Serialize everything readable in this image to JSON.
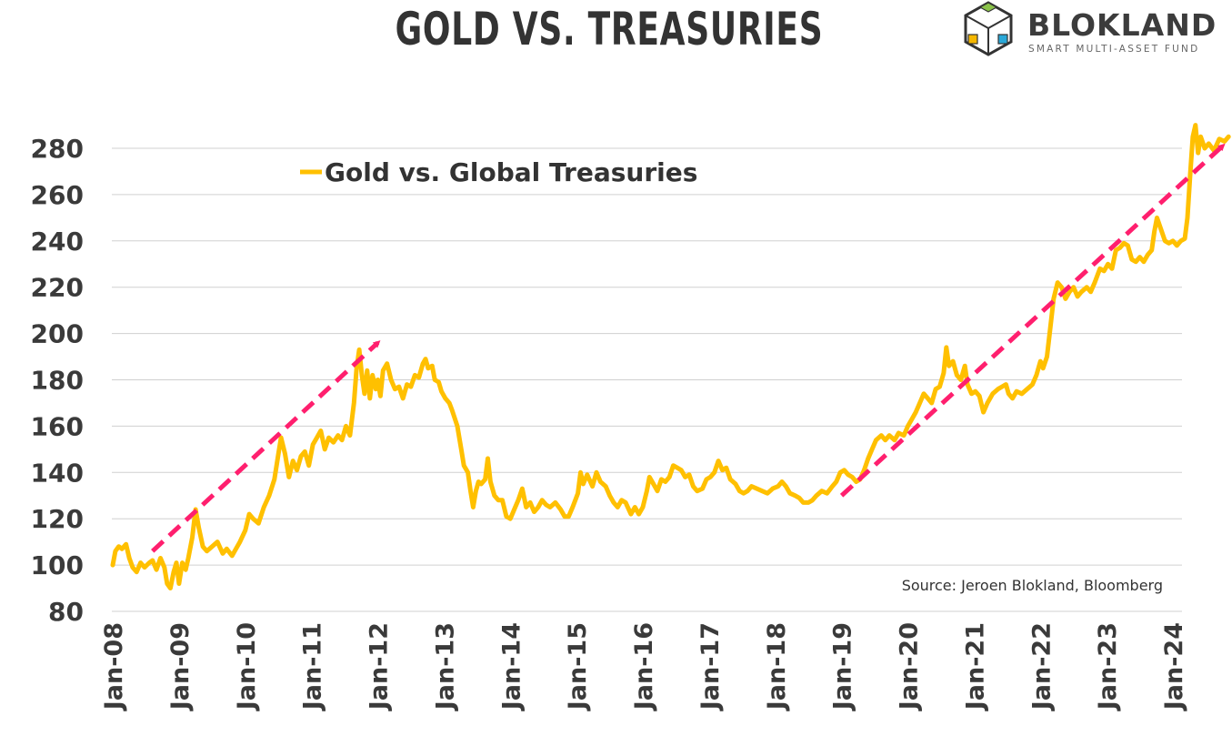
{
  "title": "GOLD VS. TREASURIES",
  "brand": {
    "name": "BLOKLAND",
    "tagline": "SMART MULTI-ASSET FUND",
    "icon": "cube-logo-icon"
  },
  "colors": {
    "series": "#FFC000",
    "arrow": "#FF1F6E",
    "grid": "#D0D0D0",
    "text": "#333333"
  },
  "chart_data": {
    "type": "line",
    "title": "GOLD VS. TREASURIES",
    "legend": "Gold vs. Global Treasuries",
    "legend_position": "top-left",
    "source": "Source: Jeroen Blokland, Bloomberg",
    "ylim": [
      80,
      290
    ],
    "yticks": [
      80,
      100,
      120,
      140,
      160,
      180,
      200,
      220,
      240,
      260,
      280
    ],
    "xlim": [
      2008.0,
      2024.85
    ],
    "xticks": [
      {
        "label": "Jan-08",
        "value": 2008
      },
      {
        "label": "Jan-09",
        "value": 2009
      },
      {
        "label": "Jan-10",
        "value": 2010
      },
      {
        "label": "Jan-11",
        "value": 2011
      },
      {
        "label": "Jan-12",
        "value": 2012
      },
      {
        "label": "Jan-13",
        "value": 2013
      },
      {
        "label": "Jan-14",
        "value": 2014
      },
      {
        "label": "Jan-15",
        "value": 2015
      },
      {
        "label": "Jan-16",
        "value": 2016
      },
      {
        "label": "Jan-17",
        "value": 2017
      },
      {
        "label": "Jan-18",
        "value": 2018
      },
      {
        "label": "Jan-19",
        "value": 2019
      },
      {
        "label": "Jan-20",
        "value": 2020
      },
      {
        "label": "Jan-21",
        "value": 2021
      },
      {
        "label": "Jan-22",
        "value": 2022
      },
      {
        "label": "Jan-23",
        "value": 2023
      },
      {
        "label": "Jan-24",
        "value": 2024
      }
    ],
    "series": [
      {
        "name": "Gold vs. Global Treasuries",
        "points": [
          [
            2008.0,
            100
          ],
          [
            2008.04,
            106
          ],
          [
            2008.09,
            108
          ],
          [
            2008.14,
            107
          ],
          [
            2008.2,
            109
          ],
          [
            2008.25,
            103
          ],
          [
            2008.3,
            99
          ],
          [
            2008.36,
            97
          ],
          [
            2008.42,
            101
          ],
          [
            2008.48,
            99
          ],
          [
            2008.55,
            101
          ],
          [
            2008.6,
            102
          ],
          [
            2008.66,
            98
          ],
          [
            2008.72,
            103
          ],
          [
            2008.78,
            99
          ],
          [
            2008.82,
            92
          ],
          [
            2008.87,
            90
          ],
          [
            2008.92,
            97
          ],
          [
            2008.96,
            101
          ],
          [
            2009.0,
            92
          ],
          [
            2009.05,
            101
          ],
          [
            2009.1,
            98
          ],
          [
            2009.14,
            103
          ],
          [
            2009.2,
            112
          ],
          [
            2009.25,
            124
          ],
          [
            2009.3,
            116
          ],
          [
            2009.36,
            108
          ],
          [
            2009.42,
            106
          ],
          [
            2009.5,
            108
          ],
          [
            2009.58,
            110
          ],
          [
            2009.66,
            105
          ],
          [
            2009.72,
            107
          ],
          [
            2009.8,
            104
          ],
          [
            2009.86,
            107
          ],
          [
            2009.92,
            110
          ],
          [
            2010.0,
            115
          ],
          [
            2010.06,
            122
          ],
          [
            2010.12,
            120
          ],
          [
            2010.2,
            118
          ],
          [
            2010.28,
            125
          ],
          [
            2010.36,
            130
          ],
          [
            2010.44,
            137
          ],
          [
            2010.5,
            148
          ],
          [
            2010.54,
            155
          ],
          [
            2010.6,
            148
          ],
          [
            2010.66,
            138
          ],
          [
            2010.72,
            145
          ],
          [
            2010.78,
            141
          ],
          [
            2010.84,
            147
          ],
          [
            2010.9,
            149
          ],
          [
            2010.96,
            143
          ],
          [
            2011.02,
            152
          ],
          [
            2011.08,
            155
          ],
          [
            2011.14,
            158
          ],
          [
            2011.2,
            150
          ],
          [
            2011.26,
            155
          ],
          [
            2011.33,
            153
          ],
          [
            2011.4,
            156
          ],
          [
            2011.46,
            154
          ],
          [
            2011.52,
            160
          ],
          [
            2011.58,
            156
          ],
          [
            2011.64,
            170
          ],
          [
            2011.68,
            185
          ],
          [
            2011.72,
            193
          ],
          [
            2011.76,
            182
          ],
          [
            2011.8,
            174
          ],
          [
            2011.84,
            184
          ],
          [
            2011.88,
            172
          ],
          [
            2011.92,
            182
          ],
          [
            2011.97,
            176
          ],
          [
            2012.0,
            180
          ],
          [
            2012.04,
            173
          ],
          [
            2012.08,
            184
          ],
          [
            2012.14,
            187
          ],
          [
            2012.2,
            180
          ],
          [
            2012.26,
            176
          ],
          [
            2012.32,
            177
          ],
          [
            2012.38,
            172
          ],
          [
            2012.44,
            178
          ],
          [
            2012.5,
            177
          ],
          [
            2012.56,
            182
          ],
          [
            2012.62,
            181
          ],
          [
            2012.68,
            187
          ],
          [
            2012.72,
            189
          ],
          [
            2012.76,
            185
          ],
          [
            2012.82,
            186
          ],
          [
            2012.86,
            180
          ],
          [
            2012.92,
            179
          ],
          [
            2012.96,
            175
          ],
          [
            2013.02,
            172
          ],
          [
            2013.08,
            170
          ],
          [
            2013.12,
            167
          ],
          [
            2013.2,
            160
          ],
          [
            2013.26,
            150
          ],
          [
            2013.3,
            143
          ],
          [
            2013.36,
            140
          ],
          [
            2013.4,
            132
          ],
          [
            2013.44,
            125
          ],
          [
            2013.48,
            132
          ],
          [
            2013.52,
            136
          ],
          [
            2013.56,
            135
          ],
          [
            2013.62,
            137
          ],
          [
            2013.66,
            146
          ],
          [
            2013.7,
            136
          ],
          [
            2013.76,
            130
          ],
          [
            2013.82,
            128
          ],
          [
            2013.88,
            128
          ],
          [
            2013.94,
            121
          ],
          [
            2014.0,
            120
          ],
          [
            2014.06,
            124
          ],
          [
            2014.12,
            128
          ],
          [
            2014.18,
            133
          ],
          [
            2014.24,
            125
          ],
          [
            2014.3,
            127
          ],
          [
            2014.36,
            123
          ],
          [
            2014.42,
            125
          ],
          [
            2014.48,
            128
          ],
          [
            2014.54,
            126
          ],
          [
            2014.6,
            125
          ],
          [
            2014.68,
            127
          ],
          [
            2014.76,
            124
          ],
          [
            2014.82,
            121
          ],
          [
            2014.88,
            121
          ],
          [
            2014.94,
            125
          ],
          [
            2015.02,
            131
          ],
          [
            2015.06,
            140
          ],
          [
            2015.1,
            135
          ],
          [
            2015.16,
            139
          ],
          [
            2015.24,
            134
          ],
          [
            2015.3,
            140
          ],
          [
            2015.36,
            136
          ],
          [
            2015.44,
            134
          ],
          [
            2015.5,
            130
          ],
          [
            2015.56,
            127
          ],
          [
            2015.62,
            125
          ],
          [
            2015.68,
            128
          ],
          [
            2015.74,
            127
          ],
          [
            2015.82,
            122
          ],
          [
            2015.88,
            125
          ],
          [
            2015.94,
            122
          ],
          [
            2016.0,
            125
          ],
          [
            2016.06,
            132
          ],
          [
            2016.1,
            138
          ],
          [
            2016.16,
            135
          ],
          [
            2016.22,
            132
          ],
          [
            2016.28,
            137
          ],
          [
            2016.34,
            136
          ],
          [
            2016.4,
            138
          ],
          [
            2016.46,
            143
          ],
          [
            2016.52,
            142
          ],
          [
            2016.58,
            141
          ],
          [
            2016.64,
            138
          ],
          [
            2016.7,
            139
          ],
          [
            2016.76,
            134
          ],
          [
            2016.82,
            132
          ],
          [
            2016.9,
            133
          ],
          [
            2016.96,
            137
          ],
          [
            2017.02,
            138
          ],
          [
            2017.08,
            140
          ],
          [
            2017.14,
            145
          ],
          [
            2017.2,
            141
          ],
          [
            2017.26,
            142
          ],
          [
            2017.32,
            137
          ],
          [
            2017.4,
            135
          ],
          [
            2017.46,
            132
          ],
          [
            2017.52,
            131
          ],
          [
            2017.58,
            132
          ],
          [
            2017.64,
            134
          ],
          [
            2017.72,
            133
          ],
          [
            2017.8,
            132
          ],
          [
            2017.88,
            131
          ],
          [
            2017.96,
            133
          ],
          [
            2018.04,
            134
          ],
          [
            2018.1,
            136
          ],
          [
            2018.16,
            134
          ],
          [
            2018.22,
            131
          ],
          [
            2018.3,
            130
          ],
          [
            2018.36,
            129
          ],
          [
            2018.42,
            127
          ],
          [
            2018.5,
            127
          ],
          [
            2018.56,
            128
          ],
          [
            2018.62,
            130
          ],
          [
            2018.7,
            132
          ],
          [
            2018.78,
            131
          ],
          [
            2018.86,
            134
          ],
          [
            2018.92,
            136
          ],
          [
            2018.98,
            140
          ],
          [
            2019.04,
            141
          ],
          [
            2019.1,
            139
          ],
          [
            2019.16,
            138
          ],
          [
            2019.22,
            136
          ],
          [
            2019.28,
            137
          ],
          [
            2019.34,
            141
          ],
          [
            2019.4,
            146
          ],
          [
            2019.46,
            150
          ],
          [
            2019.52,
            154
          ],
          [
            2019.6,
            156
          ],
          [
            2019.66,
            154
          ],
          [
            2019.72,
            156
          ],
          [
            2019.8,
            154
          ],
          [
            2019.86,
            157
          ],
          [
            2019.94,
            156
          ],
          [
            2020.0,
            160
          ],
          [
            2020.06,
            163
          ],
          [
            2020.12,
            166
          ],
          [
            2020.18,
            170
          ],
          [
            2020.24,
            174
          ],
          [
            2020.3,
            172
          ],
          [
            2020.36,
            170
          ],
          [
            2020.42,
            176
          ],
          [
            2020.48,
            177
          ],
          [
            2020.54,
            183
          ],
          [
            2020.58,
            194
          ],
          [
            2020.62,
            186
          ],
          [
            2020.68,
            188
          ],
          [
            2020.74,
            182
          ],
          [
            2020.8,
            180
          ],
          [
            2020.86,
            186
          ],
          [
            2020.9,
            178
          ],
          [
            2020.96,
            174
          ],
          [
            2021.02,
            175
          ],
          [
            2021.08,
            173
          ],
          [
            2021.14,
            166
          ],
          [
            2021.2,
            170
          ],
          [
            2021.28,
            174
          ],
          [
            2021.36,
            176
          ],
          [
            2021.42,
            177
          ],
          [
            2021.48,
            178
          ],
          [
            2021.52,
            174
          ],
          [
            2021.58,
            172
          ],
          [
            2021.64,
            175
          ],
          [
            2021.72,
            174
          ],
          [
            2021.8,
            176
          ],
          [
            2021.88,
            178
          ],
          [
            2021.94,
            182
          ],
          [
            2022.0,
            188
          ],
          [
            2022.04,
            185
          ],
          [
            2022.1,
            190
          ],
          [
            2022.16,
            205
          ],
          [
            2022.2,
            215
          ],
          [
            2022.26,
            222
          ],
          [
            2022.32,
            220
          ],
          [
            2022.38,
            215
          ],
          [
            2022.44,
            218
          ],
          [
            2022.5,
            220
          ],
          [
            2022.56,
            216
          ],
          [
            2022.62,
            218
          ],
          [
            2022.7,
            220
          ],
          [
            2022.76,
            218
          ],
          [
            2022.82,
            222
          ],
          [
            2022.9,
            228
          ],
          [
            2022.96,
            227
          ],
          [
            2023.02,
            230
          ],
          [
            2023.08,
            228
          ],
          [
            2023.14,
            236
          ],
          [
            2023.2,
            237
          ],
          [
            2023.26,
            239
          ],
          [
            2023.32,
            238
          ],
          [
            2023.38,
            232
          ],
          [
            2023.44,
            231
          ],
          [
            2023.5,
            233
          ],
          [
            2023.56,
            231
          ],
          [
            2023.62,
            234
          ],
          [
            2023.68,
            236
          ],
          [
            2023.72,
            244
          ],
          [
            2023.76,
            250
          ],
          [
            2023.82,
            245
          ],
          [
            2023.88,
            240
          ],
          [
            2023.94,
            239
          ],
          [
            2024.0,
            240
          ],
          [
            2024.06,
            238
          ],
          [
            2024.12,
            240
          ],
          [
            2024.18,
            241
          ],
          [
            2024.22,
            250
          ],
          [
            2024.26,
            268
          ],
          [
            2024.3,
            285
          ],
          [
            2024.34,
            290
          ],
          [
            2024.38,
            278
          ],
          [
            2024.42,
            285
          ],
          [
            2024.48,
            280
          ],
          [
            2024.54,
            282
          ],
          [
            2024.62,
            279
          ],
          [
            2024.7,
            284
          ],
          [
            2024.78,
            283
          ],
          [
            2024.84,
            285
          ]
        ]
      }
    ],
    "annotations": [
      {
        "type": "trend-arrow",
        "from": [
          2008.6,
          106
        ],
        "to": [
          2012.0,
          196
        ]
      },
      {
        "type": "trend-arrow",
        "from": [
          2019.0,
          130
        ],
        "to": [
          2024.75,
          281
        ]
      }
    ]
  }
}
